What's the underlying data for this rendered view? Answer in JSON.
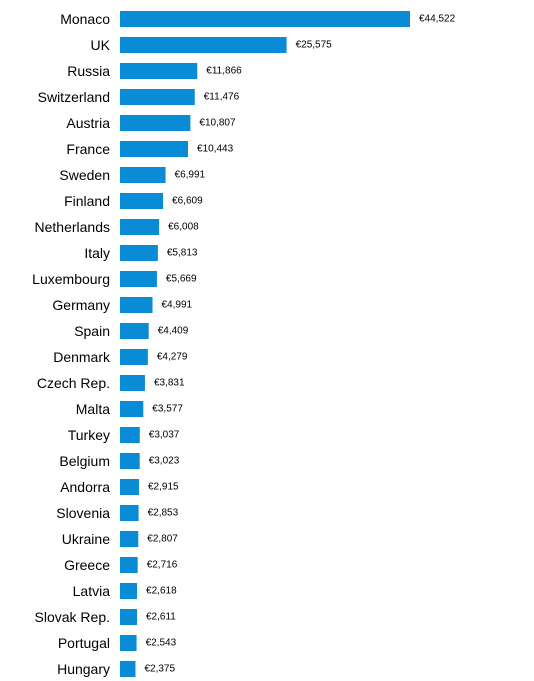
{
  "chart_data": {
    "type": "bar",
    "orientation": "horizontal",
    "title": "",
    "xlabel": "",
    "ylabel": "",
    "bar_color": "#0a8bd6",
    "categories": [
      "Monaco",
      "UK",
      "Russia",
      "Switzerland",
      "Austria",
      "France",
      "Sweden",
      "Finland",
      "Netherlands",
      "Italy",
      "Luxembourg",
      "Germany",
      "Spain",
      "Denmark",
      "Czech Rep.",
      "Malta",
      "Turkey",
      "Belgium",
      "Andorra",
      "Slovenia",
      "Ukraine",
      "Greece",
      "Latvia",
      "Slovak Rep.",
      "Portugal",
      "Hungary"
    ],
    "values": [
      44522,
      25575,
      11866,
      11476,
      10807,
      10443,
      6991,
      6609,
      6008,
      5813,
      5669,
      4991,
      4409,
      4279,
      3831,
      3577,
      3037,
      3023,
      2915,
      2853,
      2807,
      2716,
      2618,
      2611,
      2543,
      2375
    ],
    "value_labels": [
      "€44,522",
      "€25,575",
      "€11,866",
      "€11,476",
      "€10,807",
      "€10,443",
      "€6,991",
      "€6,609",
      "€6,008",
      "€5,813",
      "€5,669",
      "€4,991",
      "€4,409",
      "€4,279",
      "€3,831",
      "€3,577",
      "€3,037",
      "€3,023",
      "€2,915",
      "€2,853",
      "€2,807",
      "€2,716",
      "€2,618",
      "€2,611",
      "€2,543",
      "€2,375"
    ],
    "grid": false,
    "legend": "none"
  }
}
